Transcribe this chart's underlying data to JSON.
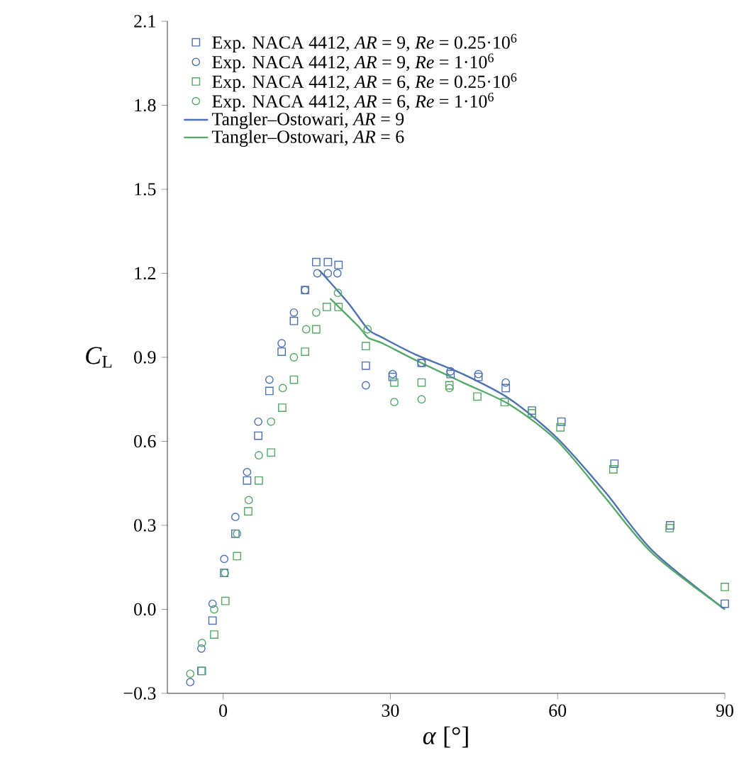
{
  "chart_data": {
    "type": "scatter",
    "xlabel": "*α* [°]",
    "ylabel": "*C*$_{L}$",
    "xlim": [
      -10,
      90
    ],
    "ylim": [
      -0.3,
      2.1
    ],
    "xticks": [
      0,
      30,
      60,
      90
    ],
    "yticks": [
      {
        "value": -0.3,
        "label": "−0.3"
      },
      {
        "value": 0,
        "label": "0.0"
      },
      {
        "value": 0.3,
        "label": "0.3"
      },
      {
        "value": 0.6,
        "label": "0.6"
      },
      {
        "value": 0.9,
        "label": "0.9"
      },
      {
        "value": 1.2,
        "label": "1.2"
      },
      {
        "value": 1.5,
        "label": "1.5"
      },
      {
        "value": 1.8,
        "label": "1.8"
      },
      {
        "value": 2.1,
        "label": "2.1"
      }
    ],
    "legend": "top left",
    "series": [
      {
        "name": "Exp. NACA 4412, *AR* = 9, *Re* = 0.25·10$^{6}$",
        "marker": "square",
        "color": "#4c72b0",
        "x": [
          -3.9,
          -1.9,
          0.2,
          2.2,
          4.3,
          6.3,
          8.3,
          10.5,
          12.7,
          14.7,
          16.7,
          18.8,
          20.7,
          25.6,
          30.4,
          35.6,
          40.8,
          45.8,
          50.7,
          55.4,
          60.7,
          70.2,
          80.2,
          90
        ],
        "values": [
          -0.22,
          -0.04,
          0.13,
          0.27,
          0.46,
          0.62,
          0.78,
          0.92,
          1.03,
          1.14,
          1.24,
          1.24,
          1.23,
          0.87,
          0.83,
          0.88,
          0.84,
          0.83,
          0.79,
          0.71,
          0.67,
          0.52,
          0.3,
          0.02
        ]
      },
      {
        "name": "Exp. NACA 4412, *AR* = 9, *Re* = 1·10$^{6}$",
        "marker": "circle",
        "color": "#4c72b0",
        "x": [
          -5.9,
          -3.9,
          -1.9,
          0.2,
          2.2,
          4.3,
          6.3,
          8.3,
          10.5,
          12.7,
          14.7,
          16.9,
          18.8,
          20.5,
          25.6,
          30.4,
          35.6,
          40.8,
          45.8,
          50.7
        ],
        "values": [
          -0.26,
          -0.14,
          0.02,
          0.18,
          0.33,
          0.49,
          0.67,
          0.82,
          0.95,
          1.06,
          1.14,
          1.2,
          1.2,
          1.2,
          0.8,
          0.84,
          0.88,
          0.85,
          0.84,
          0.81
        ]
      },
      {
        "name": "Exp. NACA 4412, *AR* = 6, *Re* = 0.25·10$^{6}$",
        "marker": "square",
        "color": "#55a868",
        "x": [
          -3.8,
          -1.6,
          0.4,
          2.5,
          4.5,
          6.4,
          8.6,
          10.6,
          12.7,
          14.7,
          16.7,
          18.6,
          20.7,
          25.6,
          30.7,
          35.6,
          40.6,
          45.6,
          50.5,
          55.4,
          60.5,
          70.0,
          80.1,
          90
        ],
        "values": [
          -0.22,
          -0.09,
          0.03,
          0.19,
          0.35,
          0.46,
          0.56,
          0.72,
          0.82,
          0.92,
          1.0,
          1.08,
          1.08,
          0.94,
          0.81,
          0.81,
          0.8,
          0.76,
          0.74,
          0.7,
          0.65,
          0.5,
          0.29,
          0.08
        ]
      },
      {
        "name": "Exp. NACA 4412, *AR* = 6, *Re* = 1·10$^{6}$",
        "marker": "circle",
        "color": "#55a868",
        "x": [
          -5.9,
          -3.8,
          -1.6,
          0.3,
          2.5,
          4.6,
          6.4,
          8.6,
          10.7,
          12.7,
          14.9,
          16.7,
          20.6,
          25.9,
          30.7,
          35.6,
          40.6
        ],
        "values": [
          -0.23,
          -0.12,
          0.0,
          0.13,
          0.27,
          0.39,
          0.55,
          0.67,
          0.79,
          0.9,
          1.0,
          1.06,
          1.13,
          1.0,
          0.74,
          0.75,
          0.79
        ]
      },
      {
        "name": "Tangler–Ostowari, *AR* = 9",
        "type": "line",
        "marker": "none",
        "color": "#4c72b0",
        "x": [
          17.3,
          22.6,
          26,
          28.6,
          34.5,
          43,
          51.5,
          60,
          68.5,
          77,
          90
        ],
        "values": [
          1.21,
          1.09,
          1.0,
          0.97,
          0.91,
          0.84,
          0.75,
          0.61,
          0.42,
          0.21,
          0.0
        ]
      },
      {
        "name": "Tangler–Ostowari, *AR* = 6",
        "type": "line",
        "marker": "none",
        "color": "#55a868",
        "x": [
          19.2,
          24.3,
          26,
          28.6,
          34.5,
          43,
          51.5,
          60,
          68.5,
          77,
          90
        ],
        "values": [
          1.11,
          1.01,
          0.97,
          0.95,
          0.89,
          0.81,
          0.73,
          0.6,
          0.4,
          0.2,
          0.0
        ]
      }
    ]
  }
}
